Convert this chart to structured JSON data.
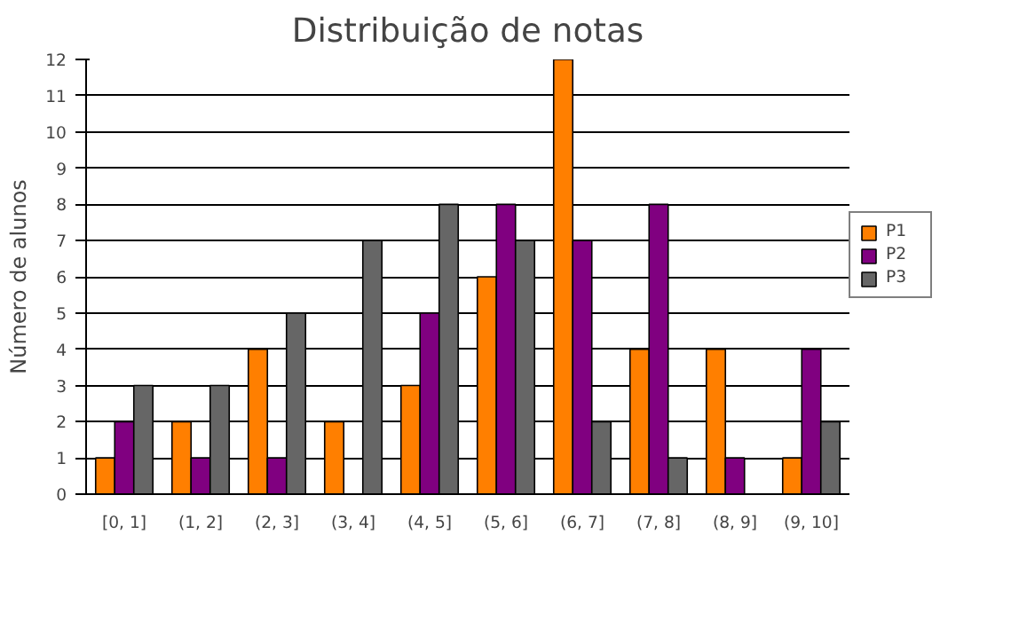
{
  "chart_data": {
    "type": "bar",
    "title": "Distribuição de notas",
    "ylabel": "Número de alunos",
    "categories": [
      "[0, 1]",
      "(1, 2]",
      "(2, 3]",
      "(3, 4]",
      "(4, 5]",
      "(5, 6]",
      "(6, 7]",
      "(7, 8]",
      "(8, 9]",
      "(9, 10]"
    ],
    "series": [
      {
        "name": "P1",
        "color": "#ff7f00",
        "values": [
          1,
          2,
          4,
          2,
          3,
          6,
          12,
          4,
          4,
          1
        ]
      },
      {
        "name": "P2",
        "color": "#800080",
        "values": [
          2,
          1,
          1,
          0,
          5,
          8,
          7,
          8,
          1,
          4
        ]
      },
      {
        "name": "P3",
        "color": "#666666",
        "values": [
          3,
          3,
          5,
          7,
          8,
          7,
          2,
          1,
          0,
          2
        ]
      }
    ],
    "ylim": [
      0,
      12
    ],
    "yticks": [
      0,
      1,
      2,
      3,
      4,
      5,
      6,
      7,
      8,
      9,
      10,
      11,
      12
    ],
    "grid": "y",
    "legend": "right"
  }
}
